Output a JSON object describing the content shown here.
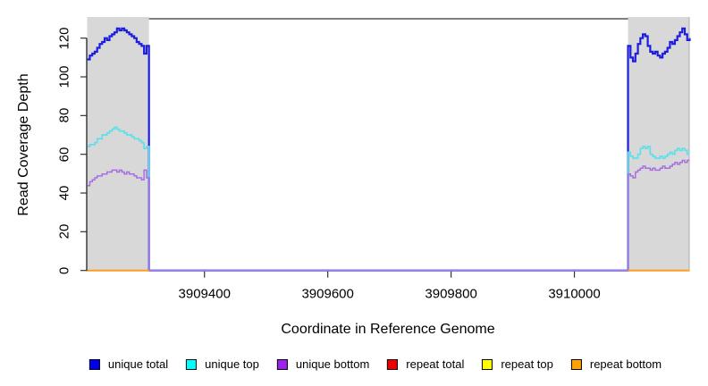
{
  "chart_data": {
    "type": "line",
    "title": "",
    "xlabel": "Coordinate in Reference Genome",
    "ylabel": "Read Coverage Depth",
    "xlim": [
      3909209,
      3910187
    ],
    "ylim": [
      0,
      130
    ],
    "x_ticks": [
      3909400,
      3909600,
      3909800,
      3910000
    ],
    "y_ticks": [
      0,
      20,
      40,
      60,
      80,
      100,
      120
    ],
    "grid": false,
    "legend_position": "bottom",
    "axis_color": "#333333",
    "box_color": "#555555",
    "shaded_regions": [
      {
        "x0": 3909209,
        "x1": 3909310,
        "color": "#d8d8d8"
      },
      {
        "x0": 3910087,
        "x1": 3910187,
        "color": "#d8d8d8",
        "right_edge_color": "#ababab"
      }
    ],
    "series": [
      {
        "name": "unique-total",
        "label": "unique total",
        "legend_color": "#0000EE",
        "line_color": "#1d1de0",
        "width": 2.2,
        "segments": [
          [
            [
              3909210,
              109
            ],
            [
              3909214,
              111
            ],
            [
              3909218,
              112
            ],
            [
              3909222,
              113
            ],
            [
              3909226,
              115
            ],
            [
              3909230,
              117
            ],
            [
              3909234,
              118
            ],
            [
              3909238,
              120
            ],
            [
              3909242,
              119
            ],
            [
              3909246,
              121
            ],
            [
              3909250,
              122
            ],
            [
              3909254,
              123
            ],
            [
              3909258,
              125
            ],
            [
              3909262,
              124
            ],
            [
              3909266,
              125
            ],
            [
              3909270,
              124
            ],
            [
              3909274,
              123
            ],
            [
              3909278,
              122
            ],
            [
              3909282,
              121
            ],
            [
              3909286,
              120
            ],
            [
              3909290,
              118
            ],
            [
              3909294,
              117
            ],
            [
              3909298,
              116
            ],
            [
              3909302,
              112
            ],
            [
              3909306,
              116
            ],
            [
              3909310,
              0
            ],
            [
              3910087,
              116
            ],
            [
              3910091,
              110
            ],
            [
              3910095,
              108
            ],
            [
              3910099,
              112
            ],
            [
              3910103,
              117
            ],
            [
              3910107,
              120
            ],
            [
              3910111,
              122
            ],
            [
              3910115,
              121
            ],
            [
              3910119,
              116
            ],
            [
              3910123,
              113
            ],
            [
              3910127,
              112
            ],
            [
              3910131,
              113
            ],
            [
              3910135,
              111
            ],
            [
              3910139,
              110
            ],
            [
              3910143,
              112
            ],
            [
              3910147,
              113
            ],
            [
              3910151,
              115
            ],
            [
              3910155,
              118
            ],
            [
              3910159,
              117
            ],
            [
              3910163,
              119
            ],
            [
              3910167,
              121
            ],
            [
              3910171,
              123
            ],
            [
              3910175,
              125
            ],
            [
              3910179,
              122
            ],
            [
              3910183,
              119
            ],
            [
              3910187,
              120
            ]
          ]
        ]
      },
      {
        "name": "unique-top",
        "label": "unique top",
        "legend_color": "#00FFFF",
        "line_color": "#5fdfea",
        "width": 1.7,
        "segments": [
          [
            [
              3909210,
              64
            ],
            [
              3909214,
              65
            ],
            [
              3909218,
              65
            ],
            [
              3909222,
              66
            ],
            [
              3909226,
              68
            ],
            [
              3909230,
              68
            ],
            [
              3909234,
              70
            ],
            [
              3909238,
              70
            ],
            [
              3909242,
              71
            ],
            [
              3909246,
              72
            ],
            [
              3909250,
              73
            ],
            [
              3909254,
              74
            ],
            [
              3909258,
              73
            ],
            [
              3909262,
              72
            ],
            [
              3909266,
              72
            ],
            [
              3909270,
              71
            ],
            [
              3909274,
              70
            ],
            [
              3909278,
              70
            ],
            [
              3909282,
              69
            ],
            [
              3909286,
              68
            ],
            [
              3909290,
              68
            ],
            [
              3909294,
              67
            ],
            [
              3909298,
              66
            ],
            [
              3909302,
              63
            ],
            [
              3909306,
              64
            ],
            [
              3909310,
              0
            ],
            [
              3910087,
              61
            ],
            [
              3910091,
              59
            ],
            [
              3910095,
              58
            ],
            [
              3910099,
              58
            ],
            [
              3910103,
              60
            ],
            [
              3910107,
              63
            ],
            [
              3910111,
              64
            ],
            [
              3910115,
              63
            ],
            [
              3910119,
              64
            ],
            [
              3910123,
              60
            ],
            [
              3910127,
              59
            ],
            [
              3910131,
              58
            ],
            [
              3910135,
              58
            ],
            [
              3910139,
              59
            ],
            [
              3910143,
              58
            ],
            [
              3910147,
              59
            ],
            [
              3910151,
              60
            ],
            [
              3910155,
              61
            ],
            [
              3910159,
              60
            ],
            [
              3910163,
              62
            ],
            [
              3910167,
              63
            ],
            [
              3910171,
              62
            ],
            [
              3910175,
              63
            ],
            [
              3910179,
              62
            ],
            [
              3910183,
              60
            ],
            [
              3910187,
              60
            ]
          ]
        ]
      },
      {
        "name": "unique-bottom",
        "label": "unique bottom",
        "legend_color": "#A020F0",
        "line_color": "#a76ee3",
        "width": 1.5,
        "segments": [
          [
            [
              3909210,
              44
            ],
            [
              3909214,
              46
            ],
            [
              3909218,
              47
            ],
            [
              3909222,
              48
            ],
            [
              3909226,
              49
            ],
            [
              3909230,
              49
            ],
            [
              3909234,
              50
            ],
            [
              3909238,
              50
            ],
            [
              3909242,
              51
            ],
            [
              3909246,
              51
            ],
            [
              3909250,
              52
            ],
            [
              3909254,
              52
            ],
            [
              3909258,
              51
            ],
            [
              3909262,
              52
            ],
            [
              3909266,
              51
            ],
            [
              3909270,
              50
            ],
            [
              3909274,
              51
            ],
            [
              3909278,
              50
            ],
            [
              3909282,
              50
            ],
            [
              3909286,
              49
            ],
            [
              3909290,
              48
            ],
            [
              3909294,
              48
            ],
            [
              3909298,
              47
            ],
            [
              3909302,
              52
            ],
            [
              3909306,
              48
            ],
            [
              3909310,
              0
            ],
            [
              3910087,
              50
            ],
            [
              3910091,
              49
            ],
            [
              3910095,
              48
            ],
            [
              3910099,
              51
            ],
            [
              3910103,
              52
            ],
            [
              3910107,
              53
            ],
            [
              3910111,
              54
            ],
            [
              3910115,
              53
            ],
            [
              3910119,
              53
            ],
            [
              3910123,
              52
            ],
            [
              3910127,
              53
            ],
            [
              3910131,
              52
            ],
            [
              3910135,
              52
            ],
            [
              3910139,
              53
            ],
            [
              3910143,
              54
            ],
            [
              3910147,
              53
            ],
            [
              3910151,
              53
            ],
            [
              3910155,
              54
            ],
            [
              3910159,
              55
            ],
            [
              3910163,
              56
            ],
            [
              3910167,
              55
            ],
            [
              3910171,
              56
            ],
            [
              3910175,
              57
            ],
            [
              3910179,
              56
            ],
            [
              3910183,
              57
            ],
            [
              3910187,
              57
            ]
          ]
        ]
      },
      {
        "name": "repeat-total",
        "label": "repeat total",
        "legend_color": "#EE0000",
        "line_color": "#ee0000",
        "width": 1.4,
        "segments": [
          [
            [
              3909210,
              0
            ],
            [
              3909310,
              0
            ]
          ],
          [
            [
              3910087,
              0
            ],
            [
              3910187,
              0
            ]
          ]
        ]
      },
      {
        "name": "repeat-top",
        "label": "repeat top",
        "legend_color": "#FFFF00",
        "line_color": "#ffff00",
        "width": 1.4,
        "segments": [
          [
            [
              3909210,
              0
            ],
            [
              3909310,
              0
            ]
          ],
          [
            [
              3910087,
              0
            ],
            [
              3910187,
              0
            ]
          ]
        ]
      },
      {
        "name": "repeat-bottom",
        "label": "repeat bottom",
        "legend_color": "#FFA200",
        "line_color": "#ff9c1e",
        "width": 2,
        "segments": [
          [
            [
              3909210,
              0
            ],
            [
              3909310,
              0
            ]
          ],
          [
            [
              3910087,
              0
            ],
            [
              3910187,
              0
            ]
          ]
        ]
      }
    ],
    "legend": {
      "items": [
        {
          "label": "unique total"
        },
        {
          "label": "unique top"
        },
        {
          "label": "unique bottom"
        },
        {
          "label": "repeat total"
        },
        {
          "label": "repeat top"
        },
        {
          "label": "repeat bottom"
        }
      ]
    }
  }
}
